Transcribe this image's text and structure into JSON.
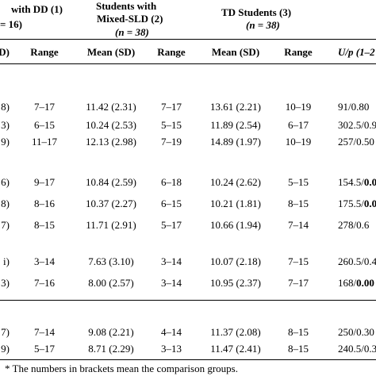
{
  "header": {
    "dd_group": "with DD (1)",
    "dd_n": "= 16)",
    "sld_line1": "Students with",
    "sld_line2": "Mixed-SLD (2)",
    "sld_n": "(n = 38)",
    "td_group": "TD Students (3)",
    "td_n": "(n = 38)"
  },
  "columns": {
    "c0": "D)",
    "c1": "Range",
    "c2": "Mean (SD)",
    "c3": "Range",
    "c4": "Mean (SD)",
    "c5": "Range",
    "c6": "U/p (1–2"
  },
  "rows": [
    {
      "c0": "8)",
      "c1": "7–17",
      "c2": "11.42 (2.31)",
      "c3": "7–17",
      "c4": "13.61 (2.21)",
      "c5": "10–19",
      "c6a": "91/0.80",
      "c6b": ""
    },
    {
      "c0": "3)",
      "c1": "6–15",
      "c2": "10.24 (2.53)",
      "c3": "5–15",
      "c4": "11.89 (2.54)",
      "c5": "6–17",
      "c6a": "302.5/0.9",
      "c6b": ""
    },
    {
      "c0": "9)",
      "c1": "11–17",
      "c2": "12.13 (2.98)",
      "c3": "7–19",
      "c4": "14.89 (1.97)",
      "c5": "10–19",
      "c6a": "257/0.50",
      "c6b": ""
    },
    {
      "c0": "6)",
      "c1": "9–17",
      "c2": "10.84 (2.59)",
      "c3": "6–18",
      "c4": "10.24 (2.62)",
      "c5": "5–15",
      "c6a": "154.5/",
      "c6b": "0.0"
    },
    {
      "c0": "8)",
      "c1": "8–16",
      "c2": "10.37 (2.27)",
      "c3": "6–15",
      "c4": "10.21 (1.81)",
      "c5": "8–15",
      "c6a": "175.5/",
      "c6b": "0.0"
    },
    {
      "c0": "7)",
      "c1": "8–15",
      "c2": "11.71 (2.91)",
      "c3": "5–17",
      "c4": "10.66 (1.94)",
      "c5": "7–14",
      "c6a": "278/0.6",
      "c6b": ""
    },
    {
      "c0": "i)",
      "c1": "3–14",
      "c2": "7.63 (3.10)",
      "c3": "3–14",
      "c4": "10.07 (2.18)",
      "c5": "7–15",
      "c6a": "260.5/0.4",
      "c6b": ""
    },
    {
      "c0": "3)",
      "c1": "7–16",
      "c2": "8.00 (2.57)",
      "c3": "3–14",
      "c4": "10.95 (2.37)",
      "c5": "7–17",
      "c6a": "168/",
      "c6b": "0.00"
    },
    {
      "c0": "7)",
      "c1": "7–14",
      "c2": "9.08 (2.21)",
      "c3": "4–14",
      "c4": "11.37 (2.08)",
      "c5": "8–15",
      "c6a": "250/0.30",
      "c6b": ""
    },
    {
      "c0": "9)",
      "c1": "5–17",
      "c2": "8.71 (2.29)",
      "c3": "3–13",
      "c4": "11.47 (2.41)",
      "c5": "8–15",
      "c6a": "240.5/0.3",
      "c6b": ""
    }
  ],
  "footnote": "* The numbers in brackets mean the comparison groups."
}
